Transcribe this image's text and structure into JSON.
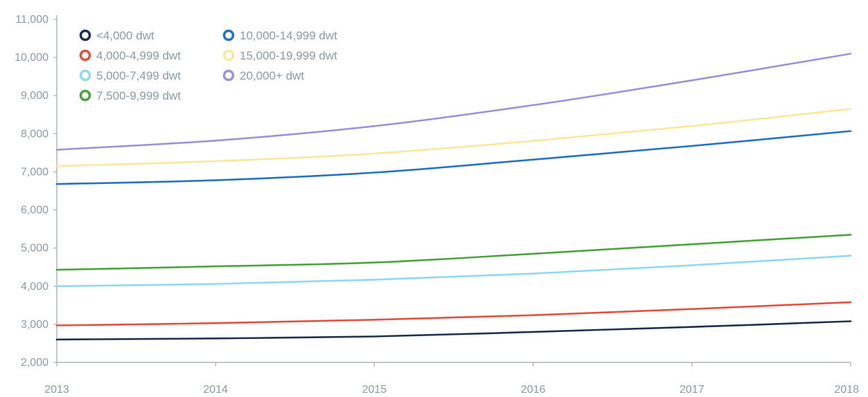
{
  "chart_data": {
    "type": "line",
    "title": "",
    "xlabel": "",
    "ylabel": "",
    "x": [
      2013,
      2014,
      2015,
      2016,
      2017,
      2018
    ],
    "x_tick_labels": [
      "2013",
      "2014",
      "2015",
      "2016",
      "2017",
      "2018"
    ],
    "ylim": [
      2000,
      11000
    ],
    "y_ticks": [
      2000,
      3000,
      4000,
      5000,
      6000,
      7000,
      8000,
      9000,
      10000,
      11000
    ],
    "y_tick_labels": [
      "2,000",
      "3,000",
      "4,000",
      "5,000",
      "6,000",
      "7,000",
      "8,000",
      "9,000",
      "10,000",
      "11,000"
    ],
    "grid": false,
    "legend_position": "top-left",
    "series": [
      {
        "name": "<4,000 dwt",
        "color": "#1f2f4e",
        "values": [
          2600,
          2630,
          2680,
          2800,
          2930,
          3080
        ]
      },
      {
        "name": "4,000-4,999 dwt",
        "color": "#e0513f",
        "values": [
          2970,
          3030,
          3120,
          3240,
          3400,
          3580
        ]
      },
      {
        "name": "5,000-7,499 dwt",
        "color": "#8fd8f5",
        "values": [
          4000,
          4060,
          4170,
          4330,
          4550,
          4800
        ]
      },
      {
        "name": "7,500-9,999 dwt",
        "color": "#4aa33d",
        "values": [
          4430,
          4520,
          4620,
          4850,
          5100,
          5350
        ]
      },
      {
        "name": "10,000-14,999 dwt",
        "color": "#2472c3",
        "values": [
          6680,
          6780,
          6980,
          7320,
          7680,
          8070
        ]
      },
      {
        "name": "15,000-19,999 dwt",
        "color": "#f9e89a",
        "values": [
          7150,
          7280,
          7480,
          7810,
          8200,
          8650
        ]
      },
      {
        "name": "20,000+ dwt",
        "color": "#9b93d6",
        "values": [
          7580,
          7820,
          8200,
          8750,
          9400,
          10100
        ]
      }
    ]
  }
}
